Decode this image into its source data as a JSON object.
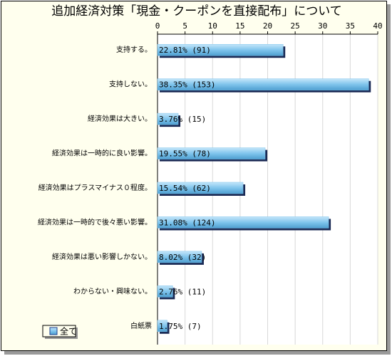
{
  "chart_data": {
    "type": "bar",
    "title": "追加経済対策「現金・クーポンを直接配布」について",
    "categories": [
      "支持する。",
      "支持しない。",
      "経済効果は大きい。",
      "経済効果は一時的に良い影響。",
      "経済効果はプラスマイナス０程度。",
      "経済効果は一時的で後々悪い影響。",
      "経済効果は悪い影響しかない。",
      "わからない・興味ない。",
      "白紙票"
    ],
    "series": [
      {
        "name": "全て",
        "color": "#7fc4ec",
        "values": [
          22.81,
          38.35,
          3.76,
          19.55,
          15.54,
          31.08,
          8.02,
          2.76,
          1.75
        ],
        "value_labels": [
          "22.81% (91)",
          "38.35% (153)",
          "3.76% (15)",
          "19.55% (78)",
          "15.54% (62)",
          "31.08% (124)",
          "8.02% (32)",
          "2.76% (11)",
          "1.75% (7)"
        ]
      }
    ],
    "xlim": [
      0,
      40
    ],
    "xticks": [
      0,
      5,
      10,
      15,
      20,
      25,
      30,
      35,
      40
    ],
    "grid": true
  }
}
